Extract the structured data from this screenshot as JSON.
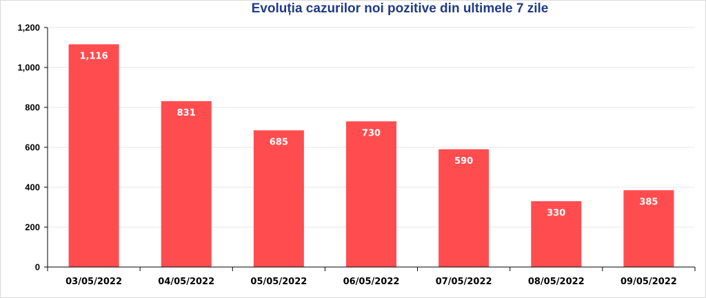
{
  "chart_data": {
    "type": "bar",
    "title": "Evoluția cazurilor noi pozitive din ultimele 7 zile",
    "categories": [
      "03/05/2022",
      "04/05/2022",
      "05/05/2022",
      "06/05/2022",
      "07/05/2022",
      "08/05/2022",
      "09/05/2022"
    ],
    "values": [
      1116,
      831,
      685,
      730,
      590,
      330,
      385
    ],
    "data_labels": [
      "1,116",
      "831",
      "685",
      "730",
      "590",
      "330",
      "385"
    ],
    "ylim": [
      0,
      1200
    ],
    "yticks": [
      0,
      200,
      400,
      600,
      800,
      1000,
      1200
    ],
    "ytick_labels": [
      "0",
      "200",
      "400",
      "600",
      "800",
      "1,000",
      "1,200"
    ],
    "xlabel": "",
    "ylabel": "",
    "grid": true,
    "legend": "none",
    "bar_color": "#ff4d4f",
    "title_color": "#1f3a8a"
  }
}
